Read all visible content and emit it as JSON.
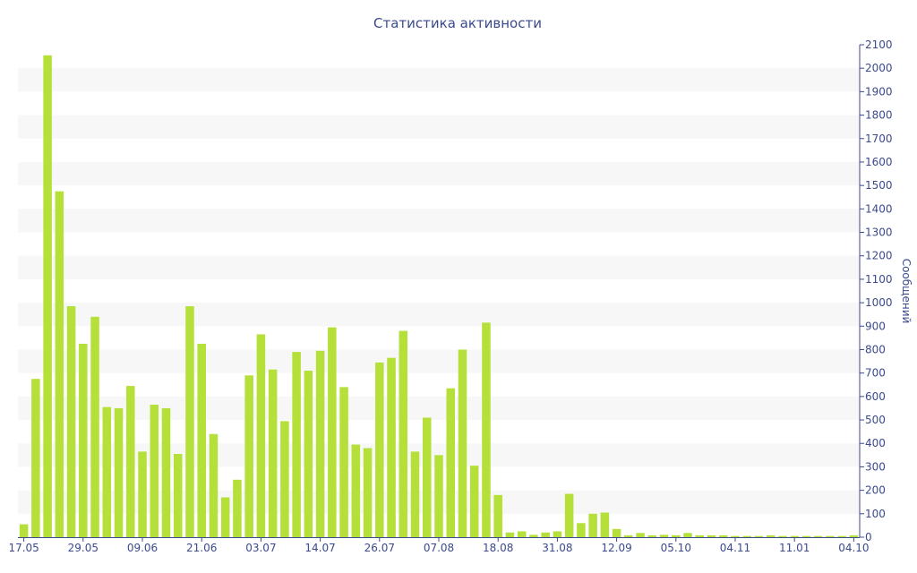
{
  "chart_data": {
    "type": "bar",
    "title": "Статистика активности",
    "xlabel": "",
    "ylabel": "Сообщений",
    "ylim": [
      0,
      2100
    ],
    "y_ticks": [
      0,
      100,
      200,
      300,
      400,
      500,
      600,
      700,
      800,
      900,
      1000,
      1100,
      1200,
      1300,
      1400,
      1500,
      1600,
      1700,
      1800,
      1900,
      2000,
      2100
    ],
    "x_ticks": [
      {
        "label": "17.05",
        "index": 0
      },
      {
        "label": "29.05",
        "index": 5
      },
      {
        "label": "09.06",
        "index": 10
      },
      {
        "label": "21.06",
        "index": 15
      },
      {
        "label": "03.07",
        "index": 20
      },
      {
        "label": "14.07",
        "index": 25
      },
      {
        "label": "26.07",
        "index": 30
      },
      {
        "label": "07.08",
        "index": 35
      },
      {
        "label": "18.08",
        "index": 40
      },
      {
        "label": "31.08",
        "index": 45
      },
      {
        "label": "12.09",
        "index": 50
      },
      {
        "label": "05.10",
        "index": 55
      },
      {
        "label": "04.11",
        "index": 60
      },
      {
        "label": "11.01",
        "index": 65
      },
      {
        "label": "04.10",
        "index": 70
      }
    ],
    "values": [
      55,
      675,
      2055,
      1475,
      985,
      825,
      940,
      555,
      550,
      645,
      365,
      565,
      550,
      355,
      985,
      825,
      440,
      170,
      245,
      690,
      865,
      715,
      495,
      790,
      710,
      795,
      895,
      640,
      395,
      380,
      745,
      765,
      880,
      365,
      510,
      350,
      635,
      800,
      305,
      915,
      180,
      20,
      25,
      10,
      20,
      25,
      185,
      60,
      100,
      105,
      35,
      8,
      18,
      8,
      10,
      8,
      18,
      8,
      8,
      8,
      5,
      5,
      5,
      8,
      5,
      5,
      5,
      5,
      5,
      5,
      8
    ],
    "bar_color": "#b5e03a",
    "band_color": "#f7f7f7",
    "axis_color": "#3b4a8c"
  }
}
